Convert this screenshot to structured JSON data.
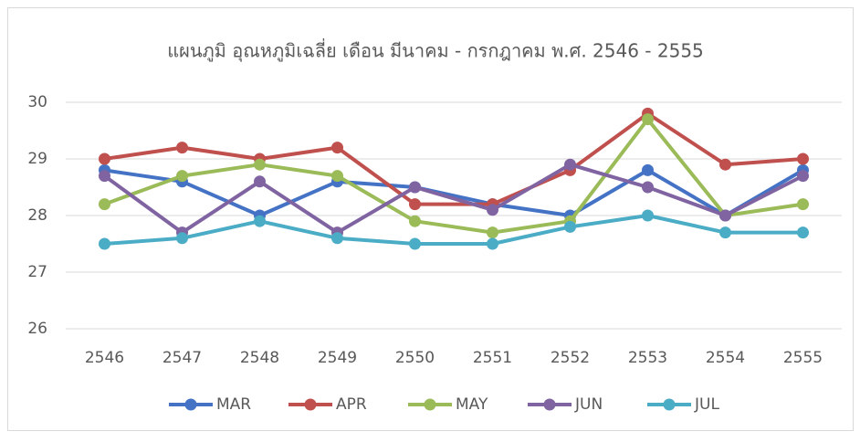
{
  "chart_data": {
    "type": "line",
    "title": "แผนภูมิ อุณหภูมิเฉลี่ย เดือน มีนาคม - กรกฎาคม พ.ศ. 2546 - 2555",
    "categories": [
      "2546",
      "2547",
      "2548",
      "2549",
      "2550",
      "2551",
      "2552",
      "2553",
      "2554",
      "2555"
    ],
    "series": [
      {
        "name": "MAR",
        "color": "#4472c4",
        "values": [
          28.8,
          28.6,
          28.0,
          28.6,
          28.5,
          28.2,
          28.0,
          28.8,
          28.0,
          28.8
        ]
      },
      {
        "name": "APR",
        "color": "#c0504d",
        "values": [
          29.0,
          29.2,
          29.0,
          29.2,
          28.2,
          28.2,
          28.8,
          29.8,
          28.9,
          29.0
        ]
      },
      {
        "name": "MAY",
        "color": "#9bbb59",
        "values": [
          28.2,
          28.7,
          28.9,
          28.7,
          27.9,
          27.7,
          27.9,
          29.7,
          28.0,
          28.2
        ]
      },
      {
        "name": "JUN",
        "color": "#8064a2",
        "values": [
          28.7,
          27.7,
          28.6,
          27.7,
          28.5,
          28.1,
          28.9,
          28.5,
          28.0,
          28.7
        ]
      },
      {
        "name": "JUL",
        "color": "#4bacc6",
        "values": [
          27.5,
          27.6,
          27.9,
          27.6,
          27.5,
          27.5,
          27.8,
          28.0,
          27.7,
          27.7
        ]
      }
    ],
    "ylim": [
      26,
      30
    ],
    "yticks": [
      26,
      27,
      28,
      29,
      30
    ],
    "grid": true,
    "legend": "bottom"
  }
}
